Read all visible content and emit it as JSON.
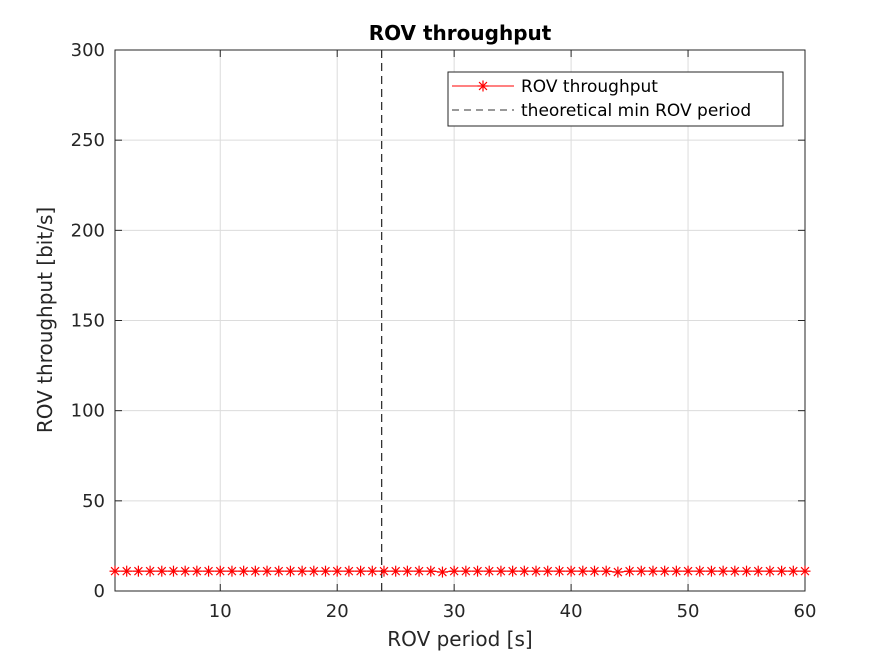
{
  "chart_data": {
    "type": "line",
    "title": "ROV throughput",
    "xlabel": "ROV period [s]",
    "ylabel": "ROV throughput [bit/s]",
    "xlim": [
      1,
      60
    ],
    "ylim": [
      0,
      300
    ],
    "xticks": [
      10,
      20,
      30,
      40,
      50,
      60
    ],
    "yticks": [
      0,
      50,
      100,
      150,
      200,
      250,
      300
    ],
    "grid": true,
    "legend_position": "top-right",
    "series": [
      {
        "name": "ROV throughput",
        "color": "#ff0000",
        "marker": "asterisk",
        "line_style": "solid",
        "x": [
          1,
          2,
          3,
          4,
          5,
          6,
          7,
          8,
          9,
          10,
          11,
          12,
          13,
          14,
          15,
          16,
          17,
          18,
          19,
          20,
          21,
          22,
          23,
          24,
          25,
          26,
          27,
          28,
          29,
          30,
          31,
          32,
          33,
          34,
          35,
          36,
          37,
          38,
          39,
          40,
          41,
          42,
          43,
          44,
          45,
          46,
          47,
          48,
          49,
          50,
          51,
          52,
          53,
          54,
          55,
          56,
          57,
          58,
          59,
          60
        ],
        "values": [
          11,
          11,
          11,
          11,
          11,
          11,
          11,
          11,
          11,
          11,
          11,
          11,
          11,
          11,
          11,
          11,
          11,
          11,
          11,
          11,
          11,
          11,
          11,
          11,
          11,
          11,
          11,
          11,
          10.5,
          11,
          11,
          11,
          11,
          11,
          11,
          11,
          11,
          11,
          11,
          11,
          11,
          11,
          11,
          10.5,
          11,
          11,
          11,
          11,
          11,
          11,
          11,
          11,
          11,
          11,
          11,
          11,
          11,
          11,
          11,
          11
        ]
      }
    ],
    "vlines": [
      {
        "name": "theoretical min ROV period",
        "x": 23.8,
        "color": "#333333",
        "line_style": "dashed"
      }
    ]
  }
}
